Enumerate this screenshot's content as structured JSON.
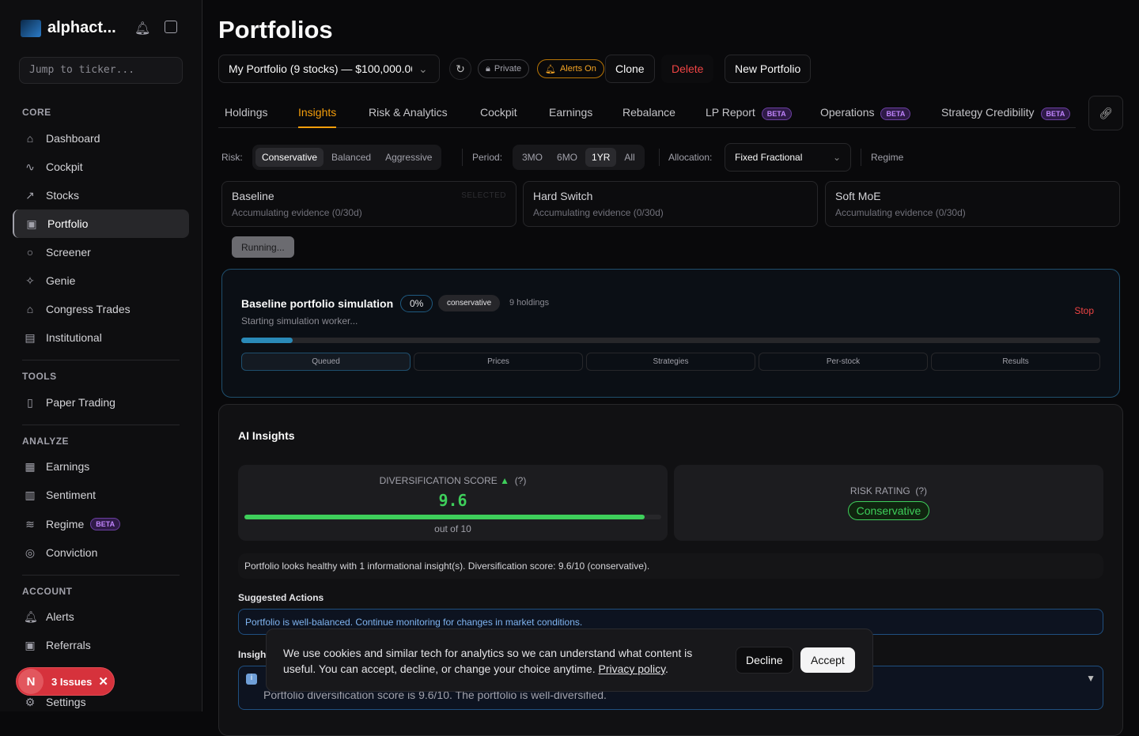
{
  "sidebar": {
    "brand": "alphact...",
    "search_placeholder": "Jump to ticker...",
    "sections": {
      "core": "CORE",
      "tools": "TOOLS",
      "analyze": "ANALYZE",
      "account": "ACCOUNT"
    },
    "items": {
      "dashboard": "Dashboard",
      "cockpit": "Cockpit",
      "stocks": "Stocks",
      "portfolio": "Portfolio",
      "screener": "Screener",
      "genie": "Genie",
      "congress": "Congress Trades",
      "institutional": "Institutional",
      "paper": "Paper Trading",
      "earnings": "Earnings",
      "sentiment": "Sentiment",
      "regime": "Regime",
      "conviction": "Conviction",
      "alerts": "Alerts",
      "referrals": "Referrals",
      "settings": "Settings"
    },
    "beta": "BETA",
    "issues": {
      "avatar": "N",
      "label": "3 Issues"
    }
  },
  "header": {
    "title": "Portfolios",
    "portfolio_select": "My Portfolio (9 stocks) — $100,000.00",
    "private": "Private",
    "alerts_on": "Alerts On",
    "clone": "Clone",
    "delete": "Delete",
    "new_portfolio": "New Portfolio"
  },
  "tabs": [
    "Holdings",
    "Insights",
    "Risk & Analytics",
    "Cockpit",
    "Earnings",
    "Rebalance",
    "LP Report",
    "Operations",
    "Strategy Credibility"
  ],
  "beta": "BETA",
  "filters": {
    "risk_label": "Risk:",
    "risk": [
      "Conservative",
      "Balanced",
      "Aggressive"
    ],
    "period_label": "Period:",
    "period": [
      "3MO",
      "6MO",
      "1YR",
      "All"
    ],
    "allocation_label": "Allocation:",
    "allocation": "Fixed Fractional",
    "regime": "Regime"
  },
  "strategies": [
    {
      "name": "Baseline",
      "status": "Accumulating evidence (0/30d)",
      "tag": "SELECTED"
    },
    {
      "name": "Hard Switch",
      "status": "Accumulating evidence (0/30d)"
    },
    {
      "name": "Soft MoE",
      "status": "Accumulating evidence (0/30d)"
    }
  ],
  "running": "Running...",
  "simulation": {
    "title": "Baseline portfolio simulation",
    "percent": "0%",
    "progress": 0.06,
    "profile": "conservative",
    "holdings": "9 holdings",
    "status": "Starting simulation worker...",
    "stop": "Stop",
    "stages": [
      "Queued",
      "Prices",
      "Strategies",
      "Per-stock",
      "Results"
    ]
  },
  "insights": {
    "title": "AI Insights",
    "div_label": "DIVERSIFICATION SCORE",
    "div_help": "(?)",
    "div_score": "9.6",
    "div_fraction": 0.96,
    "div_out_of": "out of 10",
    "risk_label": "RISK RATING",
    "risk_help": "(?)",
    "risk_value": "Conservative",
    "summary": "Portfolio looks healthy with 1 informational insight(s). Diversification score: 9.6/10 (conservative).",
    "suggested_title": "Suggested Actions",
    "suggested": "Portfolio is well-balanced. Continue monitoring for changes in market conditions.",
    "insights_title": "Insights",
    "insight_text": "Portfolio diversification score is 9.6/10. The portfolio is well-diversified."
  },
  "cookie": {
    "text": "We use cookies and similar tech for analytics so we can understand what content is useful. You can accept, decline, or change your choice anytime. ",
    "link": "Privacy policy",
    "period": ".",
    "decline": "Decline",
    "accept": "Accept"
  },
  "colors": {
    "accent": "#f59e0b",
    "green": "#3ecf5b",
    "danger": "#ef4444",
    "sim_blue": "#2a8ab8",
    "beta": "#c084fc"
  }
}
